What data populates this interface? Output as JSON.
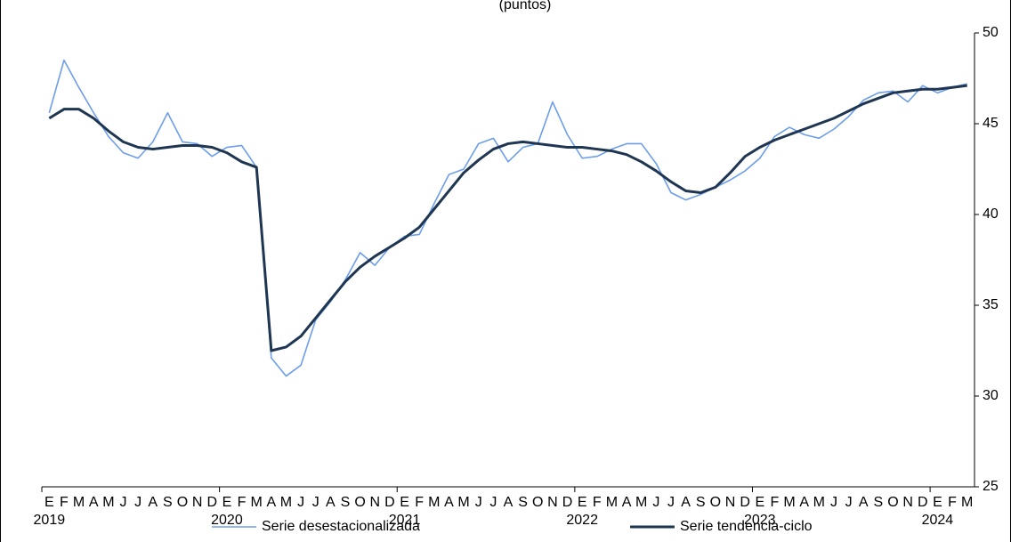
{
  "chart_data": {
    "type": "line",
    "subtitle": "(puntos)",
    "categories": [
      "E",
      "F",
      "M",
      "A",
      "M",
      "J",
      "J",
      "A",
      "S",
      "O",
      "N",
      "D",
      "E",
      "F",
      "M",
      "A",
      "M",
      "J",
      "J",
      "A",
      "S",
      "O",
      "N",
      "D",
      "E",
      "F",
      "M",
      "A",
      "M",
      "J",
      "J",
      "A",
      "S",
      "O",
      "N",
      "D",
      "E",
      "F",
      "M",
      "A",
      "M",
      "J",
      "J",
      "A",
      "S",
      "O",
      "N",
      "D",
      "E",
      "F",
      "M",
      "A",
      "M",
      "J",
      "J",
      "A",
      "S",
      "O",
      "N",
      "D",
      "E",
      "F",
      "M"
    ],
    "year_labels": [
      "2019",
      null,
      null,
      null,
      null,
      null,
      null,
      null,
      null,
      null,
      null,
      null,
      "2020",
      null,
      null,
      null,
      null,
      null,
      null,
      null,
      null,
      null,
      null,
      null,
      "2021",
      null,
      null,
      null,
      null,
      null,
      null,
      null,
      null,
      null,
      null,
      null,
      "2022",
      null,
      null,
      null,
      null,
      null,
      null,
      null,
      null,
      null,
      null,
      null,
      "2023",
      null,
      null,
      null,
      null,
      null,
      null,
      null,
      null,
      null,
      null,
      null,
      "2024",
      null,
      null
    ],
    "series": [
      {
        "name": "Serie desestacionalizada",
        "color": "#6d9eeb",
        "values": [
          45.6,
          48.5,
          47.0,
          45.6,
          44.3,
          43.4,
          43.1,
          44.0,
          45.6,
          44.0,
          43.9,
          43.2,
          43.7,
          43.8,
          42.6,
          32.1,
          31.1,
          31.7,
          34.2,
          35.2,
          36.4,
          37.9,
          37.2,
          38.2,
          38.8,
          38.9,
          40.6,
          42.2,
          42.5,
          43.9,
          44.2,
          42.9,
          43.7,
          43.9,
          46.2,
          44.4,
          43.1,
          43.2,
          43.6,
          43.9,
          43.9,
          42.8,
          41.2,
          40.8,
          41.1,
          41.5,
          41.9,
          42.4,
          43.1,
          44.3,
          44.8,
          44.4,
          44.2,
          44.7,
          45.4,
          46.3,
          46.7,
          46.8,
          46.2,
          47.1,
          46.7,
          47.0,
          47.2
        ]
      },
      {
        "name": "Serie tendencia-ciclo",
        "color": "#1f3653",
        "values": [
          45.3,
          45.8,
          45.8,
          45.3,
          44.6,
          44.0,
          43.7,
          43.6,
          43.7,
          43.8,
          43.8,
          43.7,
          43.4,
          42.9,
          42.6,
          32.5,
          32.7,
          33.3,
          34.3,
          35.3,
          36.3,
          37.1,
          37.7,
          38.2,
          38.7,
          39.3,
          40.3,
          41.3,
          42.3,
          43.0,
          43.6,
          43.9,
          44.0,
          43.9,
          43.8,
          43.7,
          43.7,
          43.6,
          43.5,
          43.3,
          42.9,
          42.4,
          41.8,
          41.3,
          41.2,
          41.5,
          42.3,
          43.2,
          43.7,
          44.1,
          44.4,
          44.7,
          45.0,
          45.3,
          45.7,
          46.1,
          46.4,
          46.7,
          46.8,
          46.9,
          46.9,
          47.0,
          47.1
        ]
      }
    ],
    "ylim": [
      25,
      50
    ],
    "yticks": [
      25,
      30,
      35,
      40,
      45,
      50
    ],
    "y_axis_side": "right"
  }
}
